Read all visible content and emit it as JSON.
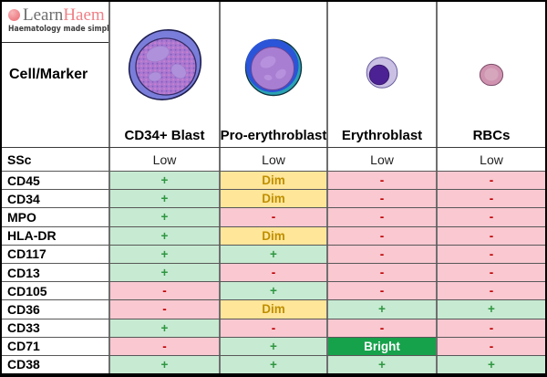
{
  "logo": {
    "brand_learn": "Learn",
    "brand_haem": "Haem",
    "tagline": "Haematology made simple"
  },
  "icons": {
    "logo_dot": "pink-circle-logo-mark",
    "cd34_blast": "large-blast-cell-illustration",
    "pro_erythroblast": "pro-erythroblast-cell-illustration",
    "erythroblast": "erythroblast-cell-illustration",
    "rbc": "red-blood-cell-illustration"
  },
  "chart_data": {
    "type": "table",
    "columns": [
      "Cell/Marker",
      "CD34+ Blast",
      "Pro-erythroblast",
      "Erythroblast",
      "RBCs"
    ],
    "rows": [
      {
        "label": "SSc",
        "values": [
          "Low",
          "Low",
          "Low",
          "Low"
        ]
      },
      {
        "label": "CD45",
        "values": [
          "+",
          "Dim",
          "-",
          "-"
        ]
      },
      {
        "label": "CD34",
        "values": [
          "+",
          "Dim",
          "-",
          "-"
        ]
      },
      {
        "label": "MPO",
        "values": [
          "+",
          "-",
          "-",
          "-"
        ]
      },
      {
        "label": "HLA-DR",
        "values": [
          "+",
          "Dim",
          "-",
          "-"
        ]
      },
      {
        "label": "CD117",
        "values": [
          "+",
          "+",
          "-",
          "-"
        ]
      },
      {
        "label": "CD13",
        "values": [
          "+",
          "-",
          "-",
          "-"
        ]
      },
      {
        "label": "CD105",
        "values": [
          "-",
          "+",
          "-",
          "-"
        ]
      },
      {
        "label": "CD36",
        "values": [
          "-",
          "Dim",
          "+",
          "+"
        ]
      },
      {
        "label": "CD33",
        "values": [
          "+",
          "-",
          "-",
          "-"
        ]
      },
      {
        "label": "CD71",
        "values": [
          "-",
          "+",
          "Bright",
          "-"
        ]
      },
      {
        "label": "CD38",
        "values": [
          "+",
          "+",
          "+",
          "+"
        ]
      }
    ]
  },
  "colors": {
    "positive_bg": "#c7ead2",
    "positive_text": "#2e9640",
    "negative_bg": "#f9c8d1",
    "negative_text": "#c00000",
    "dim_bg": "#ffe699",
    "dim_text": "#bf8f00",
    "bright_bg": "#16a24b",
    "bright_text": "#ffffff",
    "brand_pink": "#ef8187"
  }
}
